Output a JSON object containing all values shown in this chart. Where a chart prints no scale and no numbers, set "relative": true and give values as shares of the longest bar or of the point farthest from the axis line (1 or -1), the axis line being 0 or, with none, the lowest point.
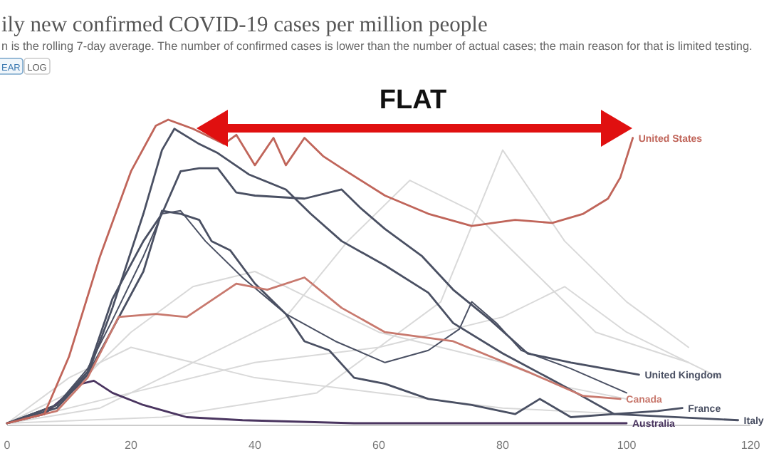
{
  "chart_data": {
    "type": "line",
    "title": "ily new confirmed COVID-19 cases per million people",
    "subtitle": "n is the rolling 7-day average. The number of confirmed cases is lower than the number of actual cases; the main reason for that is limited testing.",
    "annotations": [
      "FLAT",
      "EAR",
      "LOG"
    ],
    "relative": true,
    "xlim": [
      0,
      120
    ],
    "xticks": [
      0,
      20,
      40,
      60,
      80,
      100,
      120
    ],
    "series": [
      {
        "color": "#d9d9d9",
        "x": [
          0,
          10,
          20,
          30,
          40,
          50,
          60,
          70,
          80,
          90,
          100
        ],
        "values": [
          0,
          0.1,
          0.3,
          0.45,
          0.5,
          0.4,
          0.3,
          0.25,
          0.2,
          0.12,
          0.08
        ]
      },
      {
        "color": "#d9d9d9",
        "x": [
          0,
          15,
          30,
          45,
          55,
          65,
          75,
          85,
          95,
          110
        ],
        "values": [
          0,
          0.05,
          0.2,
          0.35,
          0.6,
          0.8,
          0.7,
          0.5,
          0.3,
          0.2
        ]
      },
      {
        "color": "#d9d9d9",
        "x": [
          0,
          20,
          40,
          60,
          80,
          90,
          100,
          115
        ],
        "values": [
          0,
          0.1,
          0.2,
          0.25,
          0.35,
          0.45,
          0.3,
          0.15
        ]
      },
      {
        "color": "#d9d9d9",
        "x": [
          0,
          10,
          20,
          30,
          40,
          60,
          80,
          100
        ],
        "values": [
          0,
          0.15,
          0.25,
          0.2,
          0.15,
          0.1,
          0.05,
          0.03
        ]
      },
      {
        "color": "#d9d9d9",
        "x": [
          0,
          25,
          50,
          70,
          80,
          90,
          100,
          110
        ],
        "values": [
          0,
          0.02,
          0.1,
          0.4,
          0.9,
          0.6,
          0.4,
          0.25
        ]
      },
      {
        "color": "#4a5063",
        "x": [
          0,
          8,
          13,
          17,
          22,
          25,
          28,
          32,
          38,
          45,
          53,
          61,
          68,
          73,
          75,
          79,
          83,
          91,
          100
        ],
        "values": [
          0,
          0.06,
          0.18,
          0.34,
          0.55,
          0.69,
          0.7,
          0.6,
          0.48,
          0.36,
          0.27,
          0.2,
          0.24,
          0.31,
          0.4,
          0.33,
          0.24,
          0.18,
          0.1
        ]
      },
      {
        "name": "Australia",
        "color": "#4a3560",
        "x": [
          0,
          6,
          10,
          12,
          14,
          17,
          22,
          29,
          38,
          56,
          79,
          100
        ],
        "values": [
          0,
          0.03,
          0.1,
          0.13,
          0.14,
          0.1,
          0.06,
          0.02,
          0.01,
          0,
          0,
          0
        ]
      },
      {
        "name": "Italy",
        "color": "#4a5063",
        "x": [
          0,
          8,
          13,
          17,
          22,
          25,
          27,
          31,
          34,
          39,
          45,
          49,
          54,
          61,
          68,
          72,
          80,
          91,
          98,
          118
        ],
        "values": [
          0,
          0.05,
          0.16,
          0.38,
          0.69,
          0.9,
          0.97,
          0.92,
          0.89,
          0.82,
          0.77,
          0.69,
          0.6,
          0.52,
          0.43,
          0.33,
          0.23,
          0.11,
          0.03,
          0.01
        ]
      },
      {
        "name": "France",
        "color": "#4a5063",
        "x": [
          0,
          8,
          13,
          17,
          22,
          25,
          28,
          31,
          33,
          36,
          40,
          45,
          48,
          52,
          56,
          61,
          68,
          75,
          82,
          86,
          91,
          98,
          105,
          109
        ],
        "values": [
          0,
          0.06,
          0.16,
          0.31,
          0.5,
          0.7,
          0.69,
          0.67,
          0.6,
          0.57,
          0.46,
          0.36,
          0.27,
          0.24,
          0.15,
          0.13,
          0.08,
          0.06,
          0.03,
          0.08,
          0.02,
          0.03,
          0.04,
          0.05
        ]
      },
      {
        "name": "Canada",
        "color": "#c8796e",
        "x": [
          0,
          8,
          13,
          18,
          24,
          29,
          37,
          42,
          48,
          54,
          61,
          72,
          84,
          93,
          99
        ],
        "values": [
          0,
          0.04,
          0.15,
          0.35,
          0.36,
          0.35,
          0.46,
          0.44,
          0.48,
          0.38,
          0.3,
          0.27,
          0.17,
          0.09,
          0.08
        ]
      },
      {
        "name": "United Kingdom",
        "color": "#4a5063",
        "x": [
          0,
          8,
          13,
          17,
          22,
          25,
          28,
          31,
          34,
          37,
          40,
          48,
          54,
          57,
          61,
          67,
          72,
          78,
          84,
          91,
          102
        ],
        "values": [
          0,
          0.06,
          0.17,
          0.41,
          0.6,
          0.69,
          0.83,
          0.84,
          0.84,
          0.76,
          0.75,
          0.74,
          0.77,
          0.71,
          0.64,
          0.55,
          0.44,
          0.34,
          0.23,
          0.2,
          0.16
        ]
      },
      {
        "name": "United States",
        "color": "#c0655a",
        "x": [
          0,
          6,
          10,
          15,
          20,
          24,
          26,
          30,
          35,
          37,
          40,
          43,
          45,
          48,
          51,
          54,
          61,
          68,
          75,
          82,
          88,
          93,
          97,
          99,
          101
        ],
        "values": [
          0,
          0.03,
          0.22,
          0.55,
          0.83,
          0.98,
          1,
          0.97,
          0.92,
          0.95,
          0.85,
          0.94,
          0.85,
          0.94,
          0.88,
          0.84,
          0.75,
          0.69,
          0.65,
          0.67,
          0.66,
          0.69,
          0.74,
          0.81,
          0.94
        ]
      }
    ]
  }
}
